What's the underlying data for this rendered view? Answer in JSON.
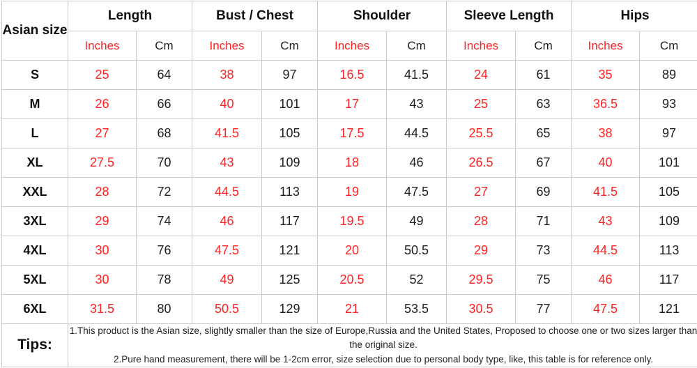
{
  "chart_data": {
    "type": "table",
    "corner_header": "Asian size",
    "column_groups": [
      "Length",
      "Bust / Chest",
      "Shoulder",
      "Sleeve Length",
      "Hips"
    ],
    "sub_columns": [
      "Inches",
      "Cm"
    ],
    "rows": [
      {
        "size": "S",
        "values": [
          25,
          64,
          38,
          97,
          16.5,
          41.5,
          24,
          61,
          35,
          89
        ]
      },
      {
        "size": "M",
        "values": [
          26,
          66,
          40,
          101,
          17,
          43,
          25,
          63,
          36.5,
          93
        ]
      },
      {
        "size": "L",
        "values": [
          27,
          68,
          41.5,
          105,
          17.5,
          44.5,
          25.5,
          65,
          38,
          97
        ]
      },
      {
        "size": "XL",
        "values": [
          27.5,
          70,
          43,
          109,
          18,
          46,
          26.5,
          67,
          40,
          101
        ]
      },
      {
        "size": "XXL",
        "values": [
          28,
          72,
          44.5,
          113,
          19,
          47.5,
          27,
          69,
          41.5,
          105
        ]
      },
      {
        "size": "3XL",
        "values": [
          29,
          74,
          46,
          117,
          19.5,
          49,
          28,
          71,
          43,
          109
        ]
      },
      {
        "size": "4XL",
        "values": [
          30,
          76,
          47.5,
          121,
          20,
          50.5,
          29,
          73,
          44.5,
          113
        ]
      },
      {
        "size": "5XL",
        "values": [
          30,
          78,
          49,
          125,
          20.5,
          52,
          29.5,
          75,
          46,
          117
        ]
      },
      {
        "size": "6XL",
        "values": [
          31.5,
          80,
          50.5,
          129,
          21,
          53.5,
          30.5,
          77,
          47.5,
          121
        ]
      }
    ],
    "tips_label": "Tips:",
    "tips_lines": [
      "1.This product is the Asian size, slightly smaller than the size of Europe,Russia and the United States, Proposed to choose one or two sizes larger than the original size.",
      "2.Pure hand measurement, there will be 1-2cm error, size selection due to personal body type, like, this table is for reference only."
    ]
  },
  "colors": {
    "inches_red": "#ff2222",
    "text_black": "#1f1f1f",
    "border_gray": "#c9c9c9"
  }
}
